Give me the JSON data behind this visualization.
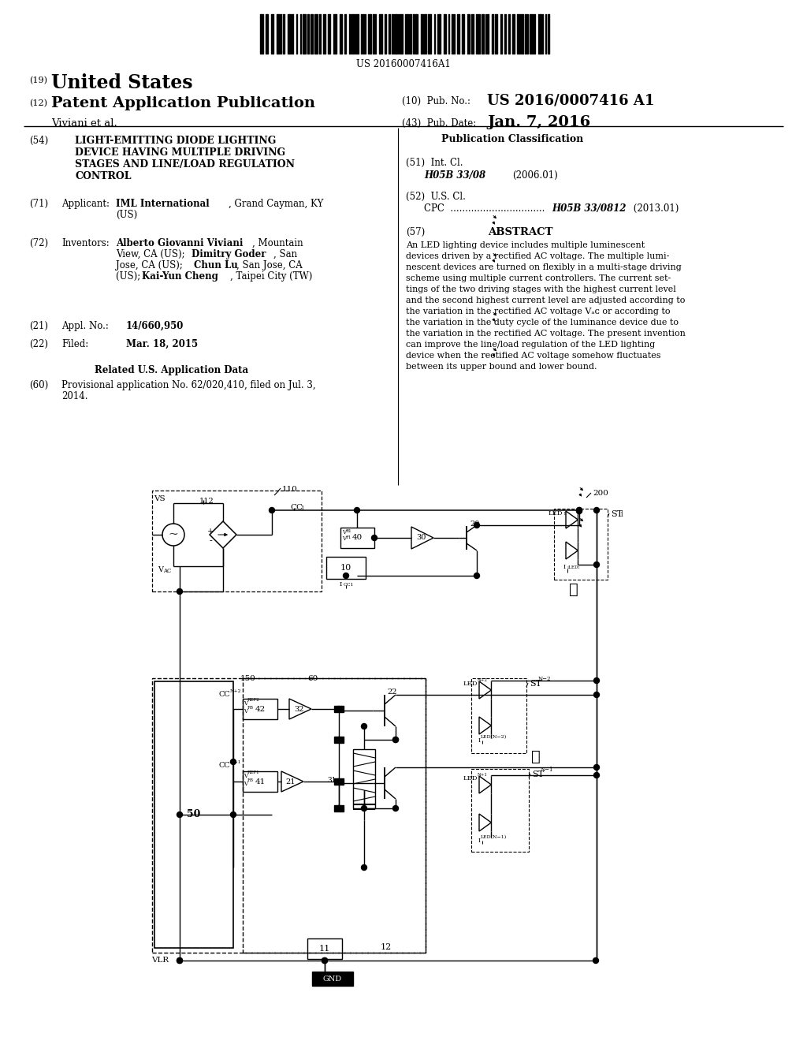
{
  "bg": "#ffffff",
  "barcode_number": "US 20160007416A1",
  "section54_lines": [
    "LIGHT-EMITTING DIODE LIGHTING",
    "DEVICE HAVING MULTIPLE DRIVING",
    "STAGES AND LINE/LOAD REGULATION",
    "CONTROL"
  ],
  "pub_class_title": "Publication Classification",
  "int_cl_code": "H05B 33/08",
  "int_cl_year": "(2006.01)",
  "cpc_code": "H05B 33/0812",
  "cpc_year": "(2013.01)",
  "abstract_title": "ABSTRACT",
  "abstract_lines": [
    "An LED lighting device includes multiple luminescent",
    "devices driven by a rectified AC voltage. The multiple lumi-",
    "nescent devices are turned on flexibly in a multi-stage driving",
    "scheme using multiple current controllers. The current set-",
    "tings of the two driving stages with the highest current level",
    "and the second highest current level are adjusted according to",
    "the variation in the rectified AC voltage Vₐᴄ or according to",
    "the variation in the duty cycle of the luminance device due to",
    "the variation in the rectified AC voltage. The present invention",
    "can improve the line/load regulation of the LED lighting",
    "device when the rectified AC voltage somehow fluctuates",
    "between its upper bound and lower bound."
  ]
}
